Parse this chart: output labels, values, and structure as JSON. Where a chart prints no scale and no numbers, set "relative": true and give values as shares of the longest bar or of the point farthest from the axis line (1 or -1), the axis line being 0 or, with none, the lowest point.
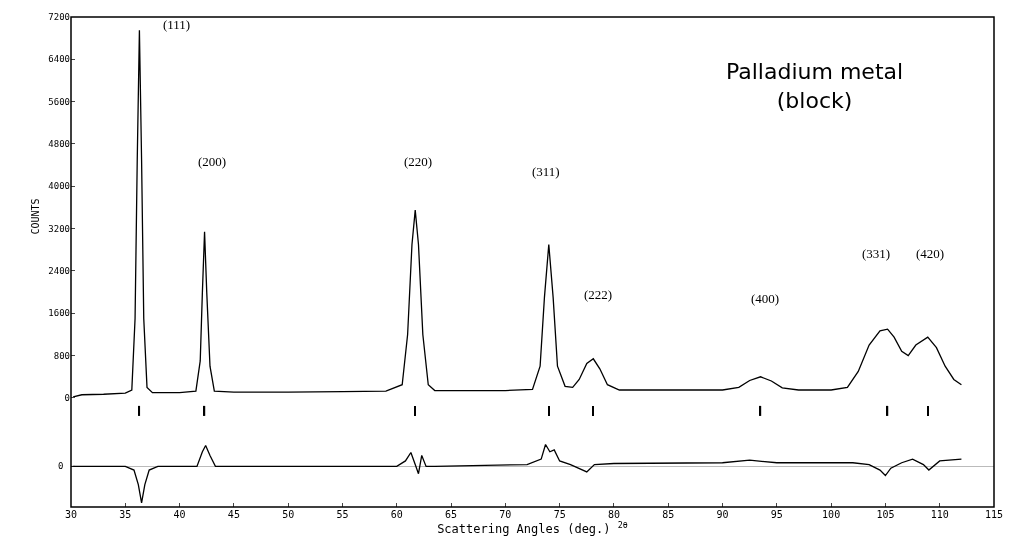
{
  "chart_data": [
    {
      "type": "line",
      "title": "Palladium metal\n(block)",
      "ylabel": "COUNTS",
      "xlim": [
        30,
        115
      ],
      "xticks": [
        30,
        35,
        40,
        45,
        50,
        55,
        60,
        65,
        70,
        75,
        80,
        85,
        90,
        95,
        100,
        105,
        110,
        115
      ],
      "ylim": [
        -340,
        7200
      ],
      "yticks": [
        0,
        800,
        1600,
        2400,
        3200,
        4000,
        4800,
        5600,
        6400,
        7200
      ],
      "tick_labels": "y",
      "line_style": "solid",
      "series": [
        {
          "color": "#000000",
          "x": [
            30.2,
            31,
            33,
            35,
            35.6,
            35.9,
            36.1,
            36.3,
            36.5,
            36.7,
            37.0,
            37.5,
            40,
            41.5,
            41.9,
            42.1,
            42.3,
            42.5,
            42.8,
            43.2,
            45,
            50,
            55,
            59,
            60.5,
            61.0,
            61.4,
            61.7,
            62.0,
            62.4,
            62.9,
            63.5,
            66,
            70,
            72.5,
            73.2,
            73.6,
            74.0,
            74.4,
            74.8,
            75.5,
            76.2,
            76.8,
            77.5,
            78.1,
            78.7,
            79.4,
            80.5,
            85,
            90,
            91.5,
            92.5,
            93.5,
            94.5,
            95.5,
            97,
            100,
            101.5,
            102.5,
            103.5,
            104.5,
            105.2,
            105.8,
            106.5,
            107.1,
            107.8,
            108.9,
            109.7,
            110.5,
            111.3,
            112
          ],
          "values": [
            20,
            60,
            70,
            90,
            150,
            1500,
            4500,
            6950,
            4500,
            1500,
            200,
            100,
            100,
            130,
            700,
            2000,
            3140,
            2000,
            600,
            130,
            110,
            110,
            120,
            130,
            250,
            1200,
            2900,
            3550,
            2900,
            1200,
            250,
            140,
            140,
            140,
            160,
            600,
            1900,
            2900,
            1900,
            600,
            220,
            200,
            350,
            650,
            740,
            550,
            250,
            150,
            150,
            150,
            200,
            330,
            400,
            320,
            190,
            150,
            150,
            200,
            500,
            1000,
            1270,
            1300,
            1150,
            880,
            800,
            1000,
            1150,
            950,
            600,
            350,
            250
          ]
        },
        {
          "type": "bar",
          "color": "#000000",
          "x": [
            36.3,
            42.3,
            61.7,
            74.0,
            78.1,
            93.5,
            105.2,
            108.9
          ],
          "base": [
            -340,
            -340,
            -340,
            -340,
            -340,
            -340,
            -340,
            -340
          ],
          "values": [
            190,
            190,
            190,
            190,
            190,
            190,
            190,
            190
          ]
        }
      ],
      "annotations": [
        "(111)",
        "(200)",
        "(220)",
        "(311)",
        "(222)",
        "(400)",
        "(331)",
        "(420)"
      ]
    },
    {
      "type": "line",
      "xlabel": "Scattering Angles (deg.) $^{2θ}$",
      "xlim": [
        30,
        115
      ],
      "xticks": [
        30,
        35,
        40,
        45,
        50,
        55,
        60,
        65,
        70,
        75,
        80,
        85,
        90,
        95,
        100,
        105,
        110,
        115
      ],
      "relative": true,
      "annotations": [
        "0"
      ],
      "line_style": "solid",
      "series": [
        {
          "color": "#000000",
          "x": [
            30.2,
            35,
            35.8,
            36.2,
            36.5,
            36.8,
            37.2,
            38,
            41.6,
            42.1,
            42.4,
            42.8,
            43.3,
            60,
            60.8,
            61.3,
            61.7,
            62.0,
            62.3,
            62.7,
            63.5,
            72,
            73.3,
            73.7,
            74.1,
            74.5,
            75,
            76,
            77.5,
            78.2,
            80,
            90,
            92.5,
            95,
            102,
            103.5,
            104.5,
            105,
            105.5,
            106.5,
            107.5,
            108.5,
            109,
            110,
            112
          ],
          "values": [
            0,
            0,
            -0.1,
            -0.5,
            -1,
            -0.5,
            -0.1,
            0,
            0,
            0.4,
            0.57,
            0.3,
            0,
            0,
            0.15,
            0.38,
            0.05,
            -0.2,
            0.3,
            0,
            0,
            0.05,
            0.2,
            0.6,
            0.4,
            0.45,
            0.15,
            0.05,
            -0.15,
            0.05,
            0.08,
            0.1,
            0.17,
            0.1,
            0.1,
            0.05,
            -0.1,
            -0.25,
            -0.05,
            0.1,
            0.2,
            0.05,
            -0.1,
            0.15,
            0.2
          ]
        }
      ]
    }
  ]
}
